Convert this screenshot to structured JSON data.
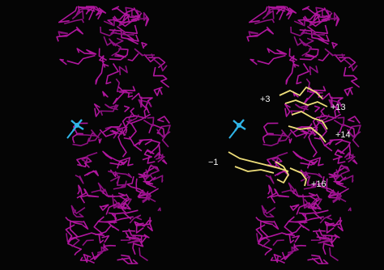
{
  "labels": [
    "+3",
    "+13",
    "+14",
    "−1",
    "+16"
  ]
}
